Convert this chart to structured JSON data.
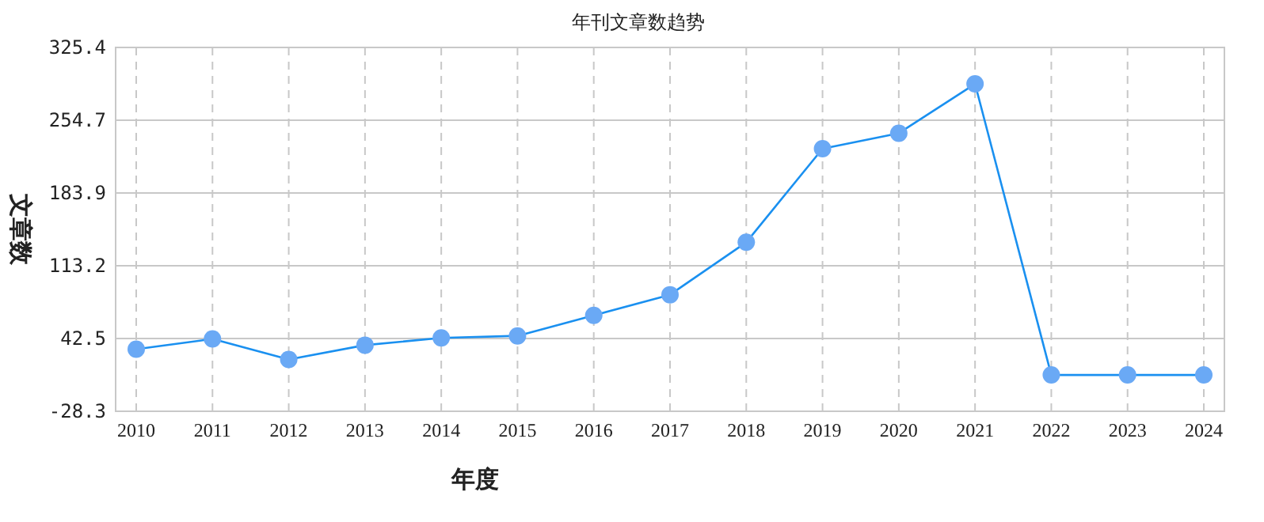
{
  "chart_data": {
    "type": "line",
    "title": "年刊文章数趋势",
    "xlabel": "年度",
    "ylabel": "文章数",
    "categories": [
      "2010",
      "2011",
      "2012",
      "2013",
      "2014",
      "2015",
      "2016",
      "2017",
      "2018",
      "2019",
      "2020",
      "2021",
      "2022",
      "2023",
      "2024"
    ],
    "series": [
      {
        "color": "#1a90f0",
        "values": [
          32,
          42,
          22,
          36,
          43,
          45,
          65,
          85,
          136,
          227,
          242,
          290,
          7,
          7,
          7
        ]
      }
    ],
    "ylim": [
      -28.3,
      325.4
    ],
    "yticks": [
      -28.3,
      42.5,
      113.2,
      183.9,
      254.7,
      325.4
    ],
    "grid": true,
    "marker": "circle",
    "line_style": "solid"
  }
}
